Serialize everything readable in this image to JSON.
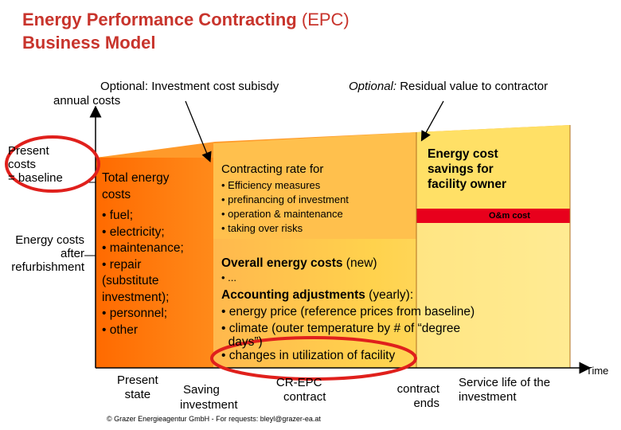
{
  "title": {
    "bold": "Energy Performance Contracting",
    "normal": " (EPC)",
    "line2": "Business Model"
  },
  "annotations": {
    "subsidy": "Optional: Investment cost subisdy",
    "annual_costs": "annual costs",
    "residual_italic": "Optional:",
    "residual_rest": " Residual value to contractor"
  },
  "left_labels": {
    "present_costs": [
      "Present",
      "costs",
      "= baseline"
    ],
    "after_refurb": [
      "Energy costs",
      "after",
      "refurbishment"
    ]
  },
  "total_energy": {
    "heading": [
      "Total energy",
      "costs"
    ],
    "items": [
      "• fuel;",
      "• electricity;",
      "• maintenance;",
      "• repair",
      "(substitute",
      " investment);",
      "• personnel;",
      "• other"
    ]
  },
  "contracting": {
    "heading": "Contracting rate for",
    "items": [
      "• Efficiency measures",
      "• prefinancing of investment",
      "• operation & maintenance",
      "• taking over risks"
    ]
  },
  "savings": {
    "lines": [
      "Energy cost",
      "savings for",
      "facility owner"
    ],
    "om": "O&m cost"
  },
  "overall": {
    "title_bold": "Overall energy costs",
    "title_rest": " (new)",
    "dots": "• ...",
    "acct_bold": "Accounting adjustments",
    "acct_rest": " (yearly):",
    "items": [
      "• energy price (reference prices from baseline)",
      "• climate (outer temperature by # of “degree",
      "  days”)",
      "• changes in utilization of facility"
    ]
  },
  "timeline": {
    "present_state": [
      "Present",
      "state"
    ],
    "saving": "Saving",
    "investment": "investment",
    "cr_epc": [
      "CR-EPC",
      "contract"
    ],
    "contract_ends": [
      "contract",
      "ends"
    ],
    "service_life": [
      "Service life of the",
      "investment"
    ],
    "time": "Time"
  },
  "footer": "© Grazer Energieagentur GmbH - For requests: bleyl@grazer-ea.at",
  "colors": {
    "title": "#c8342c",
    "orange": "#ff6600",
    "light_orange": "#ffb34d",
    "yellow": "#ffd966",
    "pale_yellow": "#fff099",
    "red": "#e8001c",
    "ellipse": "#e0201c"
  }
}
